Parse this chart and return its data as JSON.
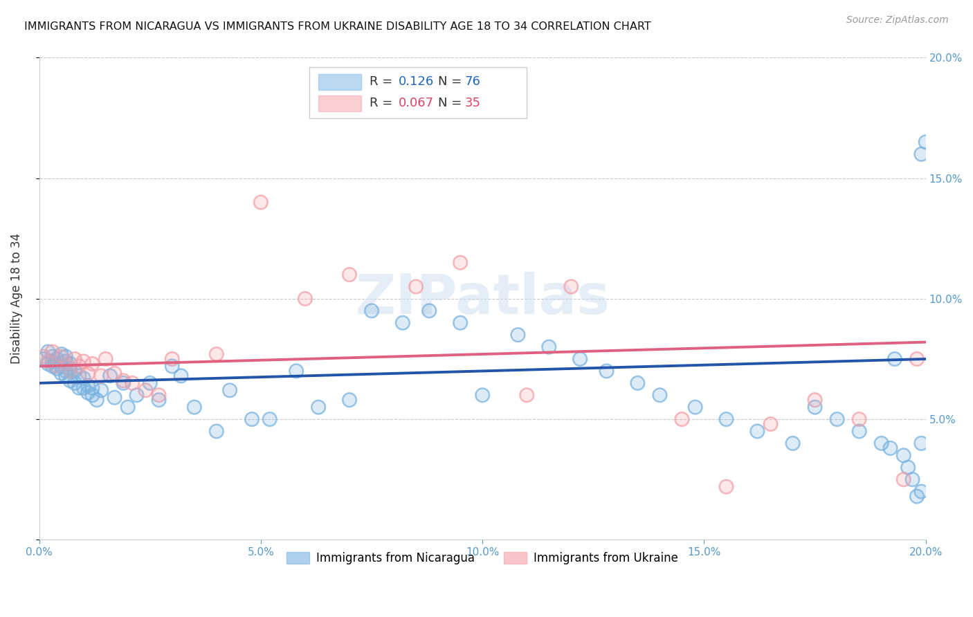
{
  "title": "IMMIGRANTS FROM NICARAGUA VS IMMIGRANTS FROM UKRAINE DISABILITY AGE 18 TO 34 CORRELATION CHART",
  "source": "Source: ZipAtlas.com",
  "ylabel": "Disability Age 18 to 34",
  "xlim": [
    0.0,
    0.2
  ],
  "ylim": [
    0.0,
    0.2
  ],
  "xticks": [
    0.0,
    0.05,
    0.1,
    0.15,
    0.2
  ],
  "yticks": [
    0.0,
    0.05,
    0.1,
    0.15,
    0.2
  ],
  "xtick_labels": [
    "0.0%",
    "5.0%",
    "10.0%",
    "15.0%",
    "20.0%"
  ],
  "ytick_labels": [
    "",
    "5.0%",
    "10.0%",
    "15.0%",
    "20.0%"
  ],
  "nicaragua_R": 0.126,
  "nicaragua_N": 76,
  "ukraine_R": 0.067,
  "ukraine_N": 35,
  "nicaragua_color": "#7ab3e0",
  "ukraine_color": "#f4a0a8",
  "nicaragua_line_color": "#2255aa",
  "ukraine_line_color": "#e06080",
  "background_color": "#ffffff",
  "watermark": "ZIPatlas",
  "nic_x": [
    0.001,
    0.002,
    0.002,
    0.003,
    0.003,
    0.003,
    0.004,
    0.004,
    0.005,
    0.005,
    0.005,
    0.006,
    0.006,
    0.006,
    0.006,
    0.007,
    0.007,
    0.007,
    0.008,
    0.008,
    0.009,
    0.009,
    0.01,
    0.01,
    0.011,
    0.011,
    0.012,
    0.012,
    0.013,
    0.014,
    0.016,
    0.017,
    0.019,
    0.02,
    0.022,
    0.025,
    0.027,
    0.03,
    0.032,
    0.035,
    0.04,
    0.043,
    0.048,
    0.052,
    0.058,
    0.063,
    0.07,
    0.075,
    0.082,
    0.088,
    0.095,
    0.1,
    0.108,
    0.115,
    0.122,
    0.128,
    0.135,
    0.14,
    0.148,
    0.155,
    0.162,
    0.17,
    0.175,
    0.18,
    0.185,
    0.19,
    0.192,
    0.193,
    0.195,
    0.196,
    0.197,
    0.198,
    0.199,
    0.199,
    0.199,
    0.2
  ],
  "nic_y": [
    0.075,
    0.073,
    0.078,
    0.074,
    0.072,
    0.076,
    0.071,
    0.075,
    0.069,
    0.072,
    0.077,
    0.07,
    0.068,
    0.074,
    0.076,
    0.066,
    0.071,
    0.073,
    0.065,
    0.07,
    0.063,
    0.068,
    0.063,
    0.067,
    0.061,
    0.064,
    0.06,
    0.063,
    0.058,
    0.062,
    0.068,
    0.059,
    0.065,
    0.055,
    0.06,
    0.065,
    0.058,
    0.072,
    0.068,
    0.055,
    0.045,
    0.062,
    0.05,
    0.05,
    0.07,
    0.055,
    0.058,
    0.095,
    0.09,
    0.095,
    0.09,
    0.06,
    0.085,
    0.08,
    0.075,
    0.07,
    0.065,
    0.06,
    0.055,
    0.05,
    0.045,
    0.04,
    0.055,
    0.05,
    0.045,
    0.04,
    0.038,
    0.075,
    0.035,
    0.03,
    0.025,
    0.018,
    0.02,
    0.04,
    0.16,
    0.165
  ],
  "ukr_x": [
    0.001,
    0.002,
    0.003,
    0.004,
    0.005,
    0.006,
    0.007,
    0.008,
    0.009,
    0.01,
    0.011,
    0.012,
    0.014,
    0.015,
    0.017,
    0.019,
    0.021,
    0.024,
    0.027,
    0.03,
    0.04,
    0.05,
    0.06,
    0.07,
    0.085,
    0.095,
    0.11,
    0.12,
    0.145,
    0.155,
    0.165,
    0.175,
    0.185,
    0.195,
    0.198
  ],
  "ukr_y": [
    0.076,
    0.074,
    0.078,
    0.072,
    0.076,
    0.073,
    0.07,
    0.075,
    0.072,
    0.074,
    0.069,
    0.073,
    0.068,
    0.075,
    0.069,
    0.066,
    0.065,
    0.062,
    0.06,
    0.075,
    0.077,
    0.14,
    0.1,
    0.11,
    0.105,
    0.115,
    0.06,
    0.105,
    0.05,
    0.022,
    0.048,
    0.058,
    0.05,
    0.025,
    0.075
  ]
}
